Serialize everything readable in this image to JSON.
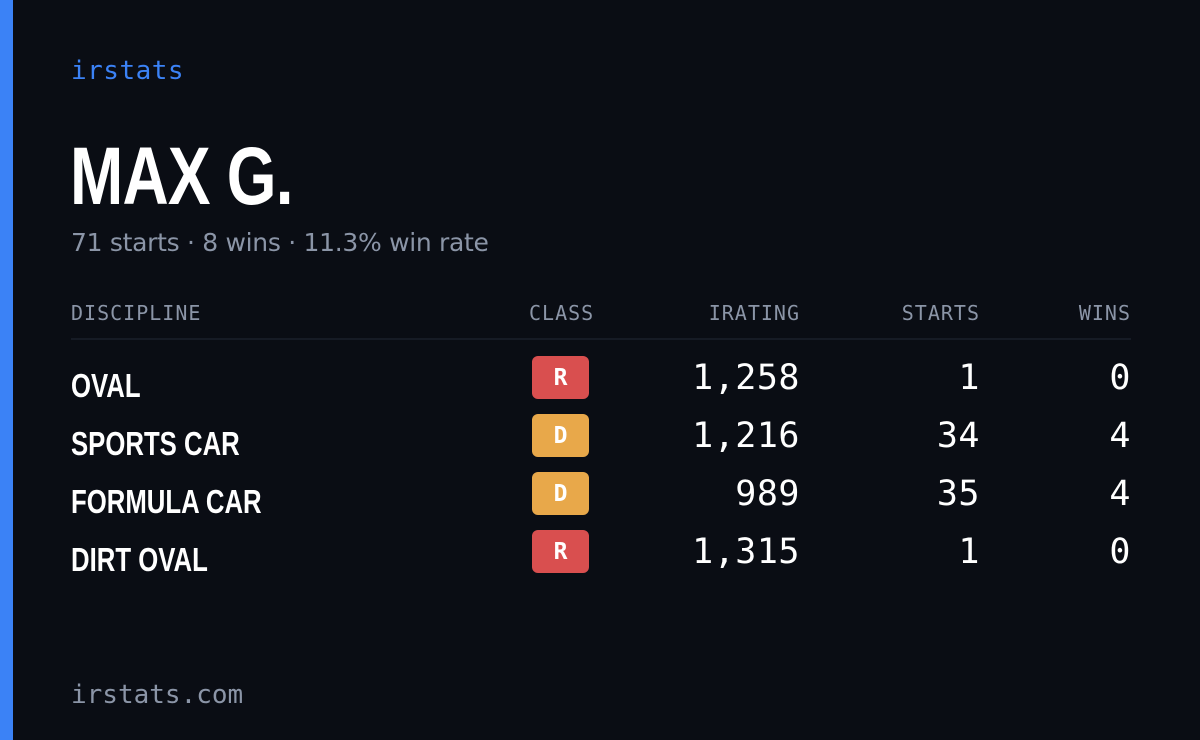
{
  "brand": "irstats",
  "profile": {
    "name": "MAX G.",
    "summary": "71 starts · 8 wins · 11.3% win rate"
  },
  "table": {
    "headers": [
      "DISCIPLINE",
      "CLASS",
      "IRATING",
      "STARTS",
      "WINS"
    ],
    "rows": [
      {
        "discipline": "OVAL",
        "class": "R",
        "class_color": "#d94f4f",
        "irating": "1,258",
        "starts": "1",
        "wins": "0"
      },
      {
        "discipline": "SPORTS CAR",
        "class": "D",
        "class_color": "#e8a84a",
        "irating": "1,216",
        "starts": "34",
        "wins": "4"
      },
      {
        "discipline": "FORMULA CAR",
        "class": "D",
        "class_color": "#e8a84a",
        "irating": "989",
        "starts": "35",
        "wins": "4"
      },
      {
        "discipline": "DIRT OVAL",
        "class": "R",
        "class_color": "#d94f4f",
        "irating": "1,315",
        "starts": "1",
        "wins": "0"
      }
    ]
  },
  "footer": "irstats.com",
  "colors": {
    "accent": "#3b82f6",
    "background": "#0a0d14",
    "muted_text": "#8b95a7"
  }
}
